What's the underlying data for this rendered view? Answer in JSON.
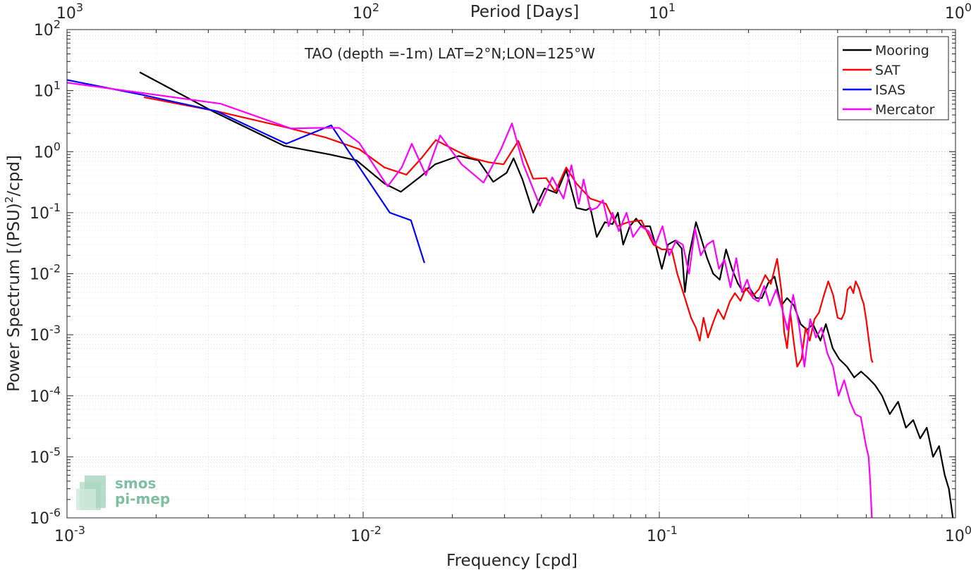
{
  "chart_data": {
    "type": "line",
    "title": "TAO (depth =-1m) LAT=2°N;LON=125°W",
    "xlabel": "Frequency [cpd]",
    "x2label": "Period [Days]",
    "ylabel_main": "Power Spectrum [(PSU)",
    "ylabel_sup": "2",
    "ylabel_tail": "/cpd]",
    "xscale": "log",
    "yscale": "log",
    "xlim": [
      0.001,
      1
    ],
    "ylim": [
      1e-06,
      100
    ],
    "grid": true,
    "legend_position": "top-right",
    "x_ticks": [
      {
        "value": 0.001,
        "base": "10",
        "exp": "-3"
      },
      {
        "value": 0.01,
        "base": "10",
        "exp": "-2"
      },
      {
        "value": 0.1,
        "base": "10",
        "exp": "-1"
      },
      {
        "value": 1,
        "base": "10",
        "exp": "0"
      }
    ],
    "x2_ticks": [
      {
        "value": 0.001,
        "base": "10",
        "exp": "3"
      },
      {
        "value": 0.01,
        "base": "10",
        "exp": "2"
      },
      {
        "value": 0.1,
        "base": "10",
        "exp": "1"
      },
      {
        "value": 1,
        "base": "10",
        "exp": "0"
      }
    ],
    "y_ticks": [
      {
        "value": 1e-06,
        "base": "10",
        "exp": "-6"
      },
      {
        "value": 1e-05,
        "base": "10",
        "exp": "-5"
      },
      {
        "value": 0.0001,
        "base": "10",
        "exp": "-4"
      },
      {
        "value": 0.001,
        "base": "10",
        "exp": "-3"
      },
      {
        "value": 0.01,
        "base": "10",
        "exp": "-2"
      },
      {
        "value": 0.1,
        "base": "10",
        "exp": "-1"
      },
      {
        "value": 1,
        "base": "10",
        "exp": "0"
      },
      {
        "value": 10,
        "base": "10",
        "exp": "1"
      },
      {
        "value": 100,
        "base": "10",
        "exp": "2"
      }
    ],
    "series": [
      {
        "name": "Mooring",
        "color": "#000000",
        "points": [
          [
            0.00176,
            20
          ],
          [
            0.0031,
            4.6
          ],
          [
            0.0054,
            1.25
          ],
          [
            0.0077,
            0.9
          ],
          [
            0.0095,
            0.72
          ],
          [
            0.0118,
            0.3
          ],
          [
            0.0134,
            0.22
          ],
          [
            0.0155,
            0.38
          ],
          [
            0.0175,
            0.62
          ],
          [
            0.021,
            0.85
          ],
          [
            0.0245,
            0.72
          ],
          [
            0.0275,
            0.32
          ],
          [
            0.0305,
            0.45
          ],
          [
            0.0322,
            0.78
          ],
          [
            0.0345,
            0.35
          ],
          [
            0.0375,
            0.1
          ],
          [
            0.041,
            0.25
          ],
          [
            0.045,
            0.21
          ],
          [
            0.0485,
            0.5
          ],
          [
            0.0525,
            0.12
          ],
          [
            0.0565,
            0.11
          ],
          [
            0.0585,
            0.12
          ],
          [
            0.0615,
            0.04
          ],
          [
            0.0655,
            0.07
          ],
          [
            0.0695,
            0.065
          ],
          [
            0.0725,
            0.1
          ],
          [
            0.0755,
            0.03
          ],
          [
            0.0795,
            0.06
          ],
          [
            0.0835,
            0.08
          ],
          [
            0.0875,
            0.06
          ],
          [
            0.093,
            0.06
          ],
          [
            0.0975,
            0.028
          ],
          [
            0.102,
            0.012
          ],
          [
            0.107,
            0.03
          ],
          [
            0.113,
            0.035
          ],
          [
            0.119,
            0.026
          ],
          [
            0.122,
            0.005
          ],
          [
            0.126,
            0.02
          ],
          [
            0.133,
            0.07
          ],
          [
            0.138,
            0.04
          ],
          [
            0.145,
            0.018
          ],
          [
            0.152,
            0.01
          ],
          [
            0.16,
            0.008
          ],
          [
            0.168,
            0.025
          ],
          [
            0.176,
            0.012
          ],
          [
            0.184,
            0.007
          ],
          [
            0.192,
            0.005
          ],
          [
            0.201,
            0.006
          ],
          [
            0.212,
            0.004
          ],
          [
            0.222,
            0.004
          ],
          [
            0.233,
            0.007
          ],
          [
            0.245,
            0.009
          ],
          [
            0.258,
            0.003
          ],
          [
            0.27,
            0.004
          ],
          [
            0.285,
            0.003
          ],
          [
            0.3,
            0.0015
          ],
          [
            0.315,
            0.0012
          ],
          [
            0.33,
            0.0015
          ],
          [
            0.35,
            0.0008
          ],
          [
            0.365,
            0.0015
          ],
          [
            0.385,
            0.0006
          ],
          [
            0.405,
            0.0004
          ],
          [
            0.43,
            0.0003
          ],
          [
            0.455,
            0.0002
          ],
          [
            0.48,
            0.00025
          ],
          [
            0.505,
            0.0002
          ],
          [
            0.535,
            0.00015
          ],
          [
            0.565,
            0.0001
          ],
          [
            0.6,
            5e-05
          ],
          [
            0.64,
            8e-05
          ],
          [
            0.68,
            3e-05
          ],
          [
            0.72,
            4e-05
          ],
          [
            0.76,
            2e-05
          ],
          [
            0.8,
            3e-05
          ],
          [
            0.84,
            1e-05
          ],
          [
            0.88,
            1.5e-05
          ],
          [
            0.92,
            5e-06
          ],
          [
            0.95,
            3e-06
          ],
          [
            0.98,
            1e-06
          ]
        ]
      },
      {
        "name": "SAT",
        "color": "#ff0000",
        "points": [
          [
            0.00182,
            7.8
          ],
          [
            0.0032,
            4.6
          ],
          [
            0.0055,
            2.5
          ],
          [
            0.0075,
            1.7
          ],
          [
            0.0097,
            1.1
          ],
          [
            0.0118,
            0.55
          ],
          [
            0.014,
            0.42
          ],
          [
            0.0158,
            0.8
          ],
          [
            0.0176,
            1.55
          ],
          [
            0.0205,
            1.05
          ],
          [
            0.023,
            0.8
          ],
          [
            0.0265,
            0.67
          ],
          [
            0.0298,
            0.62
          ],
          [
            0.0334,
            1.5
          ],
          [
            0.0375,
            0.36
          ],
          [
            0.0415,
            0.37
          ],
          [
            0.0445,
            0.22
          ],
          [
            0.0485,
            0.55
          ],
          [
            0.0525,
            0.3
          ],
          [
            0.0585,
            0.17
          ],
          [
            0.066,
            0.14
          ],
          [
            0.072,
            0.06
          ],
          [
            0.0785,
            0.07
          ],
          [
            0.087,
            0.075
          ],
          [
            0.0955,
            0.03
          ],
          [
            0.102,
            0.025
          ],
          [
            0.11,
            0.025
          ],
          [
            0.115,
            0.01
          ],
          [
            0.122,
            0.004
          ],
          [
            0.128,
            0.0019
          ],
          [
            0.133,
            0.0013
          ],
          [
            0.137,
            0.0008
          ],
          [
            0.141,
            0.0019
          ],
          [
            0.146,
            0.0009
          ],
          [
            0.152,
            0.0016
          ],
          [
            0.158,
            0.0026
          ],
          [
            0.165,
            0.0018
          ],
          [
            0.173,
            0.0035
          ],
          [
            0.18,
            0.0048
          ],
          [
            0.188,
            0.0036
          ],
          [
            0.196,
            0.0058
          ],
          [
            0.206,
            0.0042
          ],
          [
            0.217,
            0.0056
          ],
          [
            0.228,
            0.0095
          ],
          [
            0.238,
            0.0068
          ],
          [
            0.25,
            0.0175
          ],
          [
            0.258,
            0.0055
          ],
          [
            0.264,
            0.0011
          ],
          [
            0.27,
            0.0006
          ],
          [
            0.277,
            0.0023
          ],
          [
            0.284,
            0.0008
          ],
          [
            0.292,
            0.0003
          ],
          [
            0.302,
            0.0004
          ],
          [
            0.312,
            0.0013
          ],
          [
            0.322,
            0.0008
          ],
          [
            0.334,
            0.0018
          ],
          [
            0.346,
            0.0023
          ],
          [
            0.36,
            0.0045
          ],
          [
            0.372,
            0.0075
          ],
          [
            0.386,
            0.0045
          ],
          [
            0.4,
            0.0019
          ],
          [
            0.412,
            0.0018
          ],
          [
            0.422,
            0.0023
          ],
          [
            0.432,
            0.0055
          ],
          [
            0.442,
            0.0062
          ],
          [
            0.452,
            0.0048
          ],
          [
            0.46,
            0.0075
          ],
          [
            0.472,
            0.0058
          ],
          [
            0.482,
            0.004
          ],
          [
            0.49,
            0.0032
          ],
          [
            0.5,
            0.0017
          ],
          [
            0.51,
            0.0008
          ],
          [
            0.52,
            0.0004
          ],
          [
            0.525,
            0.00035
          ]
        ]
      },
      {
        "name": "ISAS",
        "color": "#0000ff",
        "points": [
          [
            0.001,
            15
          ],
          [
            0.0018,
            8.5
          ],
          [
            0.0032,
            4.6
          ],
          [
            0.0055,
            1.35
          ],
          [
            0.0078,
            2.7
          ],
          [
            0.0123,
            0.1
          ],
          [
            0.0145,
            0.075
          ],
          [
            0.0161,
            0.015
          ]
        ]
      },
      {
        "name": "Mercator",
        "color": "#ff00ff",
        "points": [
          [
            0.001,
            13.5
          ],
          [
            0.0033,
            6.1
          ],
          [
            0.0057,
            2.4
          ],
          [
            0.0071,
            2.45
          ],
          [
            0.0083,
            2.45
          ],
          [
            0.0097,
            1.4
          ],
          [
            0.0121,
            0.27
          ],
          [
            0.0135,
            0.55
          ],
          [
            0.0146,
            1.35
          ],
          [
            0.0163,
            0.41
          ],
          [
            0.0182,
            1.85
          ],
          [
            0.0215,
            0.62
          ],
          [
            0.0255,
            0.31
          ],
          [
            0.0292,
            1.1
          ],
          [
            0.0318,
            2.9
          ],
          [
            0.0347,
            0.63
          ],
          [
            0.0395,
            0.13
          ],
          [
            0.0435,
            0.38
          ],
          [
            0.0475,
            0.17
          ],
          [
            0.0505,
            0.6
          ],
          [
            0.0535,
            0.14
          ],
          [
            0.0555,
            0.35
          ],
          [
            0.0585,
            0.11
          ],
          [
            0.0615,
            0.12
          ],
          [
            0.0645,
            0.16
          ],
          [
            0.0675,
            0.06
          ],
          [
            0.0695,
            0.1
          ],
          [
            0.073,
            0.05
          ],
          [
            0.0775,
            0.1
          ],
          [
            0.0815,
            0.04
          ],
          [
            0.0865,
            0.06
          ],
          [
            0.092,
            0.05
          ],
          [
            0.097,
            0.03
          ],
          [
            0.1025,
            0.06
          ],
          [
            0.108,
            0.02
          ],
          [
            0.114,
            0.035
          ],
          [
            0.12,
            0.03
          ],
          [
            0.126,
            0.01
          ],
          [
            0.132,
            0.055
          ],
          [
            0.138,
            0.02
          ],
          [
            0.145,
            0.03
          ],
          [
            0.152,
            0.035
          ],
          [
            0.159,
            0.012
          ],
          [
            0.166,
            0.017
          ],
          [
            0.174,
            0.006
          ],
          [
            0.182,
            0.018
          ],
          [
            0.19,
            0.005
          ],
          [
            0.198,
            0.008
          ],
          [
            0.207,
            0.004
          ],
          [
            0.216,
            0.0035
          ],
          [
            0.226,
            0.0063
          ],
          [
            0.236,
            0.003
          ],
          [
            0.248,
            0.0055
          ],
          [
            0.259,
            0.0028
          ],
          [
            0.271,
            0.0012
          ],
          [
            0.283,
            0.0045
          ],
          [
            0.296,
            0.0015
          ],
          [
            0.309,
            0.0003
          ],
          [
            0.323,
            0.0018
          ],
          [
            0.338,
            0.0009
          ],
          [
            0.353,
            0.0013
          ],
          [
            0.369,
            0.0005
          ],
          [
            0.386,
            0.0003
          ],
          [
            0.403,
            0.0001
          ],
          [
            0.421,
            0.00018
          ],
          [
            0.44,
            8e-05
          ],
          [
            0.459,
            5e-05
          ],
          [
            0.479,
            4.5e-05
          ],
          [
            0.499,
            1.5e-05
          ],
          [
            0.509,
            1e-05
          ],
          [
            0.515,
            4e-06
          ],
          [
            0.52,
            1.5e-06
          ],
          [
            0.522,
            1e-06
          ]
        ]
      }
    ]
  },
  "watermark": {
    "line1": "smos",
    "line2": "pi-mep",
    "color": "#7fbf9f"
  }
}
